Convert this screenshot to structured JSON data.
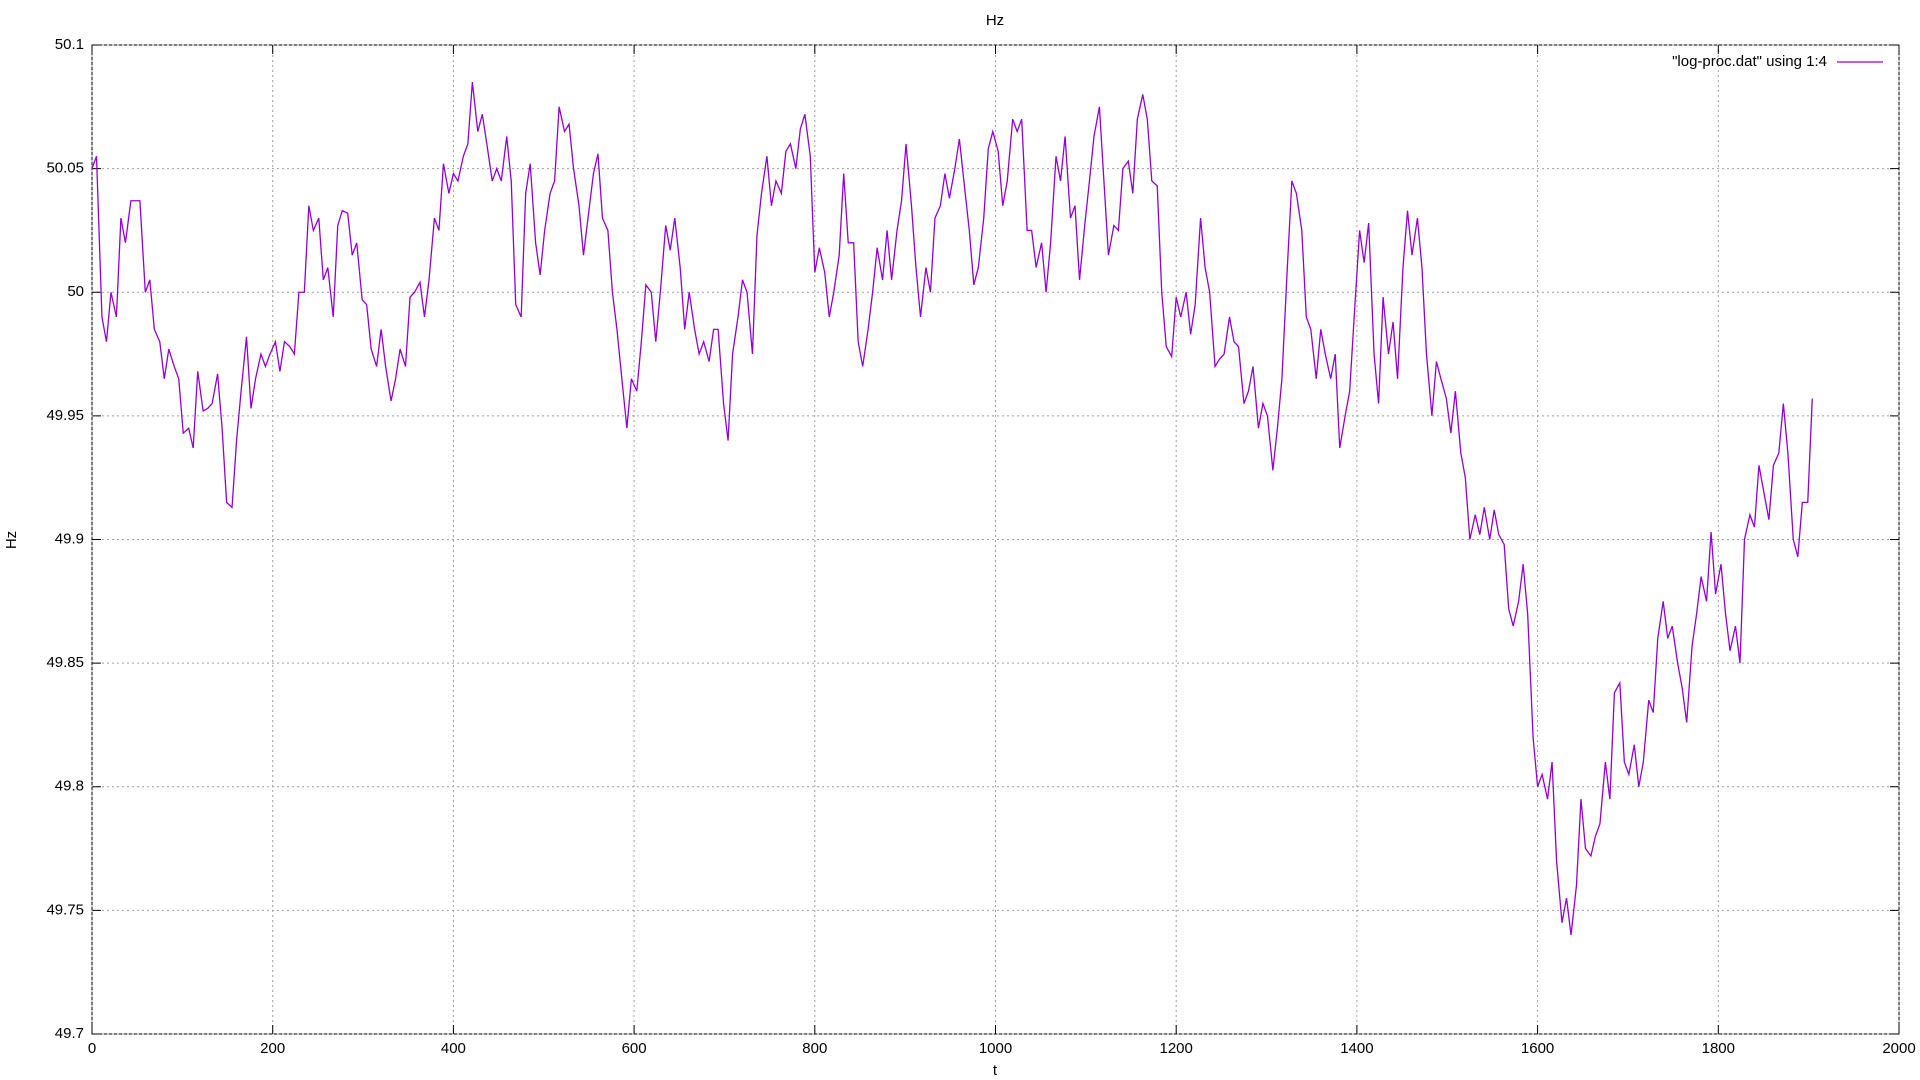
{
  "chart_data": {
    "type": "line",
    "title": "Hz",
    "xlabel": "t",
    "ylabel": "Hz",
    "xlim": [
      0,
      2000
    ],
    "xticks": [
      0,
      200,
      400,
      600,
      800,
      1000,
      1200,
      1400,
      1600,
      1800,
      2000
    ],
    "ylim": [
      49.7,
      50.1
    ],
    "yticks": [
      49.7,
      49.75,
      49.8,
      49.85,
      49.9,
      49.95,
      50,
      50.05,
      50.1
    ],
    "grid": true,
    "legend": "top right",
    "x": [
      0,
      5,
      11,
      16,
      21,
      27,
      32,
      37,
      43,
      48,
      53,
      59,
      64,
      69,
      75,
      80,
      85,
      91,
      96,
      101,
      107,
      112,
      117,
      123,
      128,
      133,
      139,
      144,
      149,
      155,
      160,
      165,
      171,
      176,
      181,
      187,
      192,
      197,
      203,
      208,
      213,
      219,
      224,
      229,
      235,
      240,
      245,
      251,
      256,
      261,
      267,
      272,
      277,
      283,
      288,
      293,
      299,
      304,
      309,
      315,
      320,
      325,
      331,
      336,
      341,
      347,
      352,
      357,
      363,
      368,
      373,
      379,
      384,
      389,
      395,
      400,
      405,
      411,
      416,
      421,
      427,
      432,
      437,
      443,
      448,
      453,
      459,
      464,
      469,
      475,
      480,
      485,
      491,
      496,
      501,
      507,
      512,
      517,
      523,
      528,
      533,
      539,
      544,
      549,
      555,
      560,
      565,
      571,
      576,
      581,
      587,
      592,
      597,
      603,
      608,
      613,
      619,
      624,
      629,
      635,
      640,
      645,
      651,
      656,
      661,
      667,
      672,
      677,
      683,
      688,
      693,
      699,
      704,
      709,
      715,
      720,
      725,
      731,
      736,
      741,
      747,
      752,
      757,
      763,
      768,
      773,
      779,
      784,
      789,
      795,
      800,
      805,
      811,
      816,
      821,
      827,
      832,
      837,
      843,
      848,
      853,
      859,
      864,
      869,
      875,
      880,
      885,
      891,
      896,
      901,
      907,
      912,
      917,
      923,
      928,
      933,
      939,
      944,
      949,
      955,
      960,
      965,
      971,
      976,
      981,
      987,
      992,
      997,
      1003,
      1008,
      1013,
      1019,
      1024,
      1029,
      1035,
      1040,
      1045,
      1051,
      1056,
      1061,
      1067,
      1072,
      1077,
      1083,
      1088,
      1093,
      1099,
      1104,
      1109,
      1115,
      1120,
      1125,
      1131,
      1136,
      1141,
      1147,
      1152,
      1157,
      1163,
      1168,
      1173,
      1179,
      1184,
      1189,
      1195,
      1200,
      1205,
      1211,
      1216,
      1221,
      1227,
      1232,
      1237,
      1243,
      1248,
      1253,
      1259,
      1264,
      1269,
      1275,
      1280,
      1285,
      1291,
      1296,
      1301,
      1307,
      1312,
      1317,
      1323,
      1328,
      1333,
      1339,
      1344,
      1349,
      1355,
      1360,
      1365,
      1371,
      1376,
      1381,
      1387,
      1392,
      1397,
      1403,
      1408,
      1413,
      1419,
      1424,
      1429,
      1435,
      1440,
      1445,
      1451,
      1456,
      1461,
      1467,
      1472,
      1477,
      1483,
      1488,
      1493,
      1499,
      1504,
      1509,
      1515,
      1520,
      1525,
      1531,
      1536,
      1541,
      1547,
      1552,
      1557,
      1563,
      1568,
      1573,
      1579,
      1584,
      1589,
      1595,
      1600,
      1605,
      1611,
      1616,
      1621,
      1627,
      1632,
      1637,
      1643,
      1648,
      1653,
      1659,
      1664,
      1669,
      1675,
      1680,
      1685,
      1691,
      1696,
      1701,
      1707,
      1712,
      1717,
      1723,
      1728,
      1733,
      1739,
      1744,
      1749,
      1755,
      1760,
      1765,
      1771,
      1776,
      1781,
      1787,
      1792,
      1797,
      1803,
      1808,
      1813,
      1819,
      1824,
      1829,
      1835,
      1840,
      1845,
      1851,
      1856,
      1861,
      1867,
      1872,
      1877,
      1883,
      1888,
      1893,
      1899,
      1904
    ],
    "series": [
      {
        "name": "\"log-proc.dat\" using 1:4",
        "color": "#9400d3",
        "values": [
          50.05,
          50.055,
          49.99,
          49.98,
          50.0,
          49.99,
          50.03,
          50.02,
          50.037,
          50.037,
          50.037,
          50.0,
          50.005,
          49.985,
          49.98,
          49.965,
          49.977,
          49.97,
          49.965,
          49.943,
          49.945,
          49.937,
          49.968,
          49.952,
          49.953,
          49.955,
          49.967,
          49.945,
          49.915,
          49.913,
          49.94,
          49.96,
          49.982,
          49.953,
          49.965,
          49.975,
          49.97,
          49.975,
          49.98,
          49.968,
          49.98,
          49.978,
          49.975,
          50.0,
          50.0,
          50.035,
          50.025,
          50.03,
          50.005,
          50.01,
          49.99,
          50.027,
          50.033,
          50.032,
          50.015,
          50.02,
          49.997,
          49.995,
          49.977,
          49.97,
          49.985,
          49.97,
          49.956,
          49.965,
          49.977,
          49.97,
          49.998,
          50.0,
          50.004,
          49.99,
          50.005,
          50.03,
          50.025,
          50.052,
          50.04,
          50.048,
          50.045,
          50.055,
          50.06,
          50.085,
          50.065,
          50.072,
          50.06,
          50.045,
          50.05,
          50.045,
          50.063,
          50.045,
          49.995,
          49.99,
          50.04,
          50.052,
          50.02,
          50.007,
          50.025,
          50.04,
          50.045,
          50.075,
          50.065,
          50.068,
          50.05,
          50.035,
          50.015,
          50.03,
          50.048,
          50.056,
          50.03,
          50.025,
          50.0,
          49.985,
          49.963,
          49.945,
          49.965,
          49.96,
          49.98,
          50.003,
          50.0,
          49.98,
          50.0,
          50.027,
          50.017,
          50.03,
          50.01,
          49.985,
          50.0,
          49.985,
          49.975,
          49.98,
          49.972,
          49.985,
          49.985,
          49.955,
          49.94,
          49.975,
          49.99,
          50.005,
          50.0,
          49.975,
          50.023,
          50.04,
          50.055,
          50.035,
          50.045,
          50.04,
          50.057,
          50.06,
          50.05,
          50.066,
          50.072,
          50.055,
          50.008,
          50.018,
          50.008,
          49.99,
          50.0,
          50.015,
          50.048,
          50.02,
          50.02,
          49.98,
          49.97,
          49.985,
          50.0,
          50.018,
          50.005,
          50.025,
          50.005,
          50.025,
          50.037,
          50.06,
          50.035,
          50.01,
          49.99,
          50.01,
          50.0,
          50.03,
          50.035,
          50.048,
          50.038,
          50.05,
          50.062,
          50.045,
          50.025,
          50.003,
          50.01,
          50.03,
          50.058,
          50.065,
          50.057,
          50.035,
          50.045,
          50.07,
          50.065,
          50.07,
          50.025,
          50.025,
          50.01,
          50.02,
          50.0,
          50.02,
          50.055,
          50.045,
          50.063,
          50.03,
          50.035,
          50.005,
          50.028,
          50.045,
          50.063,
          50.075,
          50.045,
          50.015,
          50.027,
          50.025,
          50.05,
          50.053,
          50.04,
          50.07,
          50.08,
          50.07,
          50.045,
          50.043,
          50.0,
          49.978,
          49.974,
          49.998,
          49.99,
          50.0,
          49.983,
          49.995,
          50.03,
          50.01,
          50.0,
          49.97,
          49.973,
          49.975,
          49.99,
          49.98,
          49.978,
          49.955,
          49.96,
          49.97,
          49.945,
          49.955,
          49.95,
          49.928,
          49.945,
          49.965,
          50.01,
          50.045,
          50.04,
          50.025,
          49.99,
          49.985,
          49.965,
          49.985,
          49.975,
          49.965,
          49.975,
          49.937,
          49.95,
          49.96,
          49.99,
          50.025,
          50.012,
          50.028,
          49.975,
          49.955,
          49.998,
          49.975,
          49.988,
          49.965,
          50.01,
          50.033,
          50.015,
          50.03,
          50.01,
          49.975,
          49.95,
          49.972,
          49.965,
          49.957,
          49.943,
          49.96,
          49.935,
          49.925,
          49.9,
          49.91,
          49.902,
          49.913,
          49.9,
          49.912,
          49.902,
          49.898,
          49.872,
          49.865,
          49.875,
          49.89,
          49.87,
          49.82,
          49.8,
          49.805,
          49.795,
          49.81,
          49.77,
          49.745,
          49.755,
          49.74,
          49.76,
          49.795,
          49.775,
          49.772,
          49.78,
          49.785,
          49.81,
          49.795,
          49.838,
          49.842,
          49.81,
          49.805,
          49.817,
          49.8,
          49.81,
          49.835,
          49.83,
          49.86,
          49.875,
          49.86,
          49.865,
          49.85,
          49.84,
          49.826,
          49.857,
          49.87,
          49.885,
          49.875,
          49.903,
          49.878,
          49.89,
          49.87,
          49.855,
          49.865,
          49.85,
          49.9,
          49.91,
          49.905,
          49.93,
          49.918,
          49.908,
          49.93,
          49.935,
          49.955,
          49.935,
          49.9,
          49.893,
          49.915,
          49.915,
          49.957
        ]
      }
    ]
  }
}
